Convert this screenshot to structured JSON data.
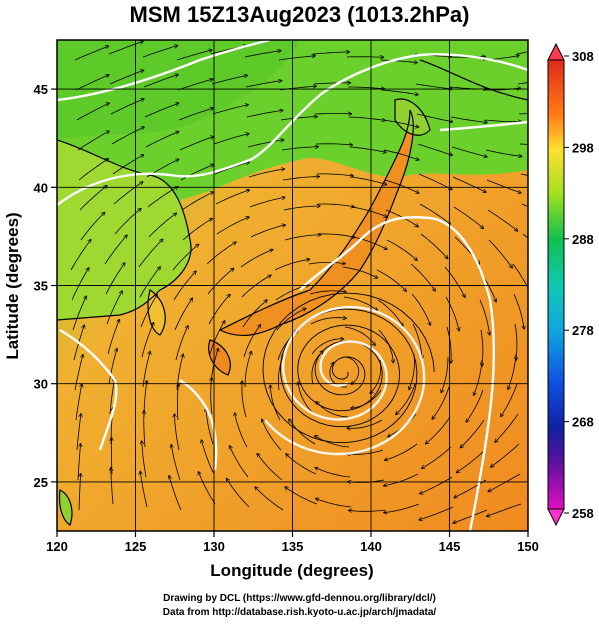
{
  "title": "MSM 15Z13Aug2023 (1013.2hPa)",
  "map": {
    "x_axis": {
      "label": "Longitude (degrees)",
      "min": 120,
      "max": 150,
      "ticks": [
        120,
        125,
        130,
        135,
        140,
        145,
        150
      ]
    },
    "y_axis": {
      "label": "Latitude  (degrees)",
      "min": 22.5,
      "max": 47.5,
      "ticks": [
        25,
        30,
        35,
        40,
        45
      ]
    },
    "grid_lines_lon": [
      125,
      130,
      135,
      140,
      145
    ],
    "grid_lines_lat": [
      25,
      30,
      35,
      40,
      45
    ],
    "field": "potential temperature with streamlines",
    "typhoon_center": {
      "lon": 138.3,
      "lat": 30.6
    }
  },
  "colorbar": {
    "min": 258,
    "max": 308,
    "labels": [
      308,
      298,
      288,
      278,
      268,
      258
    ],
    "colors": [
      "#ff3a7a",
      "#e02a1a",
      "#ff7a18",
      "#ffb020",
      "#ffe030",
      "#d8f020",
      "#70d020",
      "#10c050",
      "#10c8b0",
      "#10a8e0",
      "#1050e0",
      "#1020a0",
      "#6010a0",
      "#e010c0"
    ]
  },
  "credits": {
    "line1": "Drawing by DCL (https://www.gfd-dennou.org/library/dcl/)",
    "line2": "Data from http://database.rish.kyoto-u.ac.jp/arch/jmadata/"
  }
}
